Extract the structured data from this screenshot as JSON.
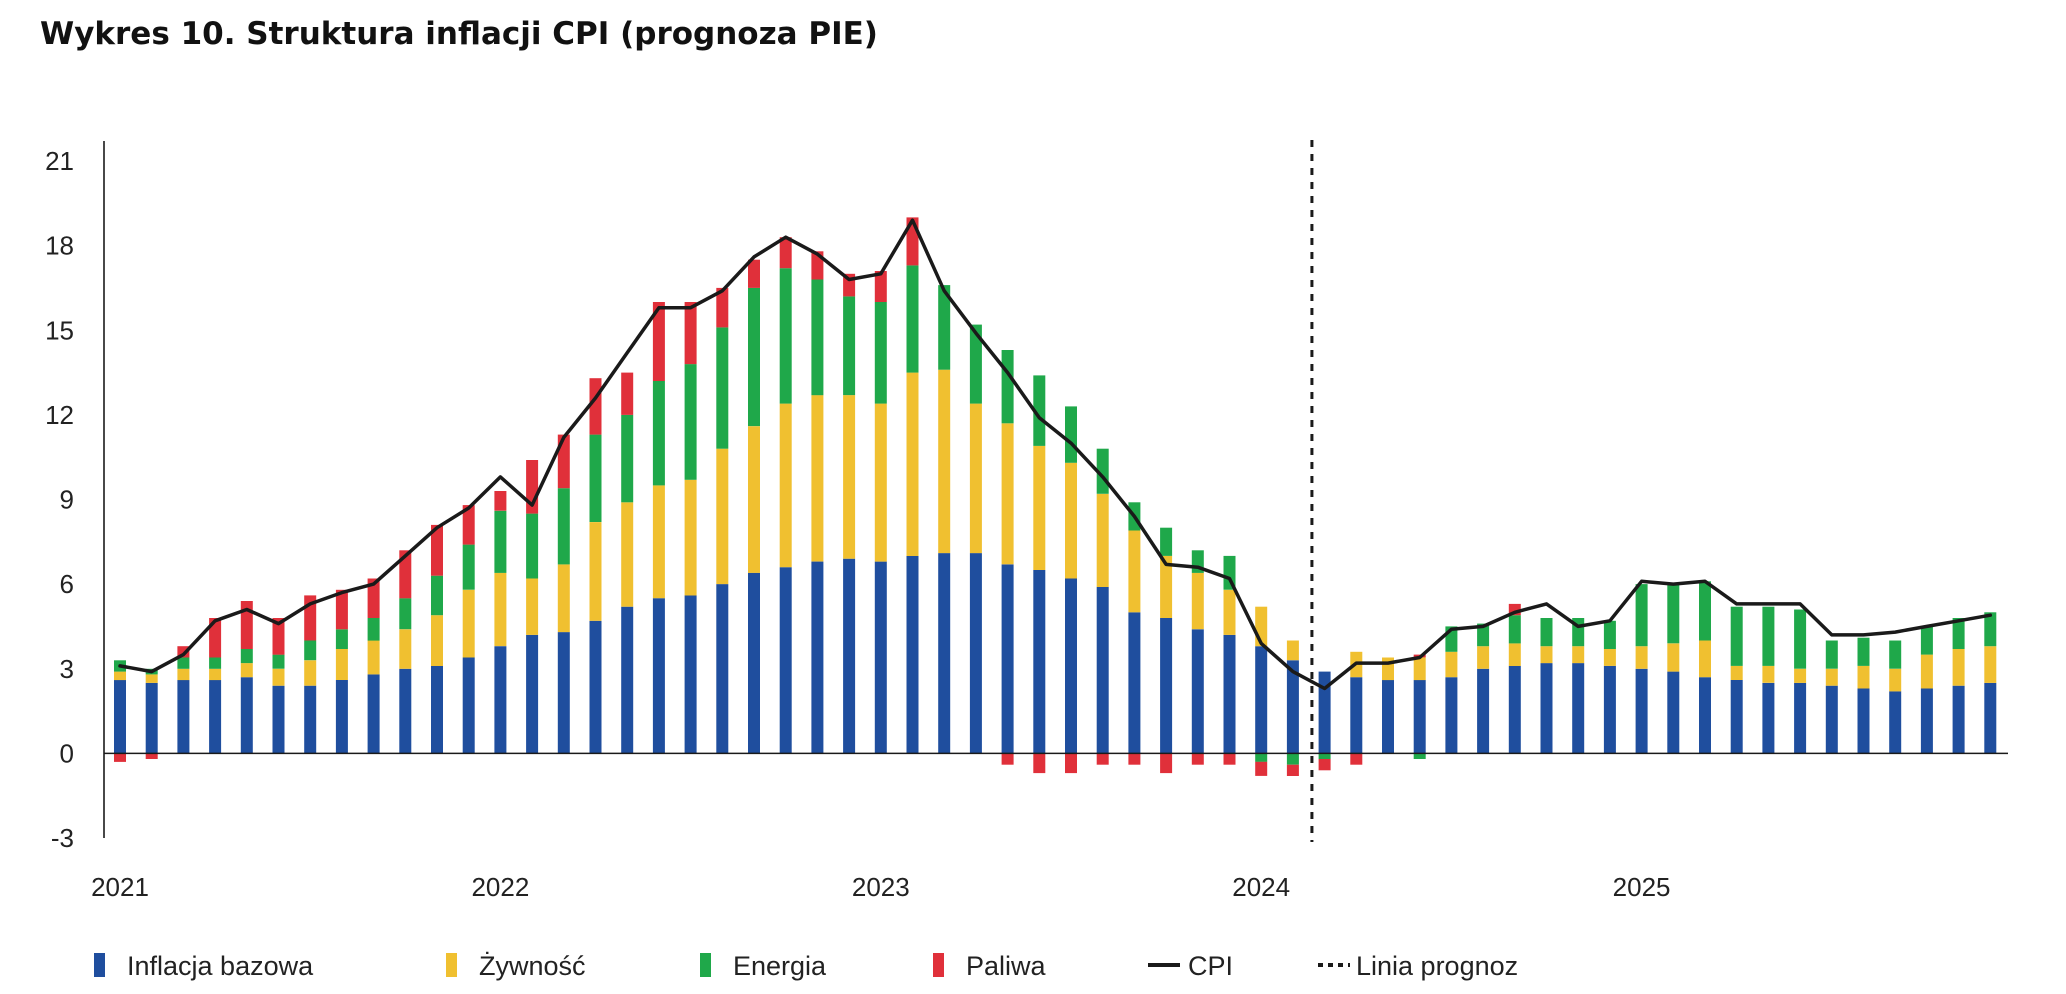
{
  "title": "Wykres 10. Struktura inflacji CPI (prognoza PIE)",
  "colors": {
    "core": "#1F4E9E",
    "food": "#F0C030",
    "energy": "#1FA84A",
    "fuel": "#E0303A",
    "cpi": "#1a1a1a",
    "axis": "#1a1a1a"
  },
  "chart_data": {
    "type": "bar",
    "stacked": true,
    "title": "Wykres 10. Struktura inflacji CPI (prognoza PIE)",
    "xlabel": "",
    "ylabel": "",
    "ylim": [
      -3,
      21
    ],
    "yticks": [
      21,
      18,
      15,
      12,
      9,
      6,
      3,
      0,
      -3
    ],
    "xticks": [
      {
        "label": "2021",
        "index": 0
      },
      {
        "label": "2022",
        "index": 12
      },
      {
        "label": "2023",
        "index": 24
      },
      {
        "label": "2024",
        "index": 36
      },
      {
        "label": "2025",
        "index": 48
      }
    ],
    "forecast_start_index": 37.6,
    "months": [
      "2021-01",
      "2021-02",
      "2021-03",
      "2021-04",
      "2021-05",
      "2021-06",
      "2021-07",
      "2021-08",
      "2021-09",
      "2021-10",
      "2021-11",
      "2021-12",
      "2022-01",
      "2022-02",
      "2022-03",
      "2022-04",
      "2022-05",
      "2022-06",
      "2022-07",
      "2022-08",
      "2022-09",
      "2022-10",
      "2022-11",
      "2022-12",
      "2023-01",
      "2023-02",
      "2023-03",
      "2023-04",
      "2023-05",
      "2023-06",
      "2023-07",
      "2023-08",
      "2023-09",
      "2023-10",
      "2023-11",
      "2023-12",
      "2024-01",
      "2024-02",
      "2024-03",
      "2024-04",
      "2024-05",
      "2024-06",
      "2024-07",
      "2024-08",
      "2024-09",
      "2024-10",
      "2024-11",
      "2024-12",
      "2025-01",
      "2025-02",
      "2025-03",
      "2025-04",
      "2025-05",
      "2025-06",
      "2025-07",
      "2025-08",
      "2025-09",
      "2025-10",
      "2025-11",
      "2025-12"
    ],
    "series": [
      {
        "name": "Inflacja bazowa",
        "type": "bar",
        "color": "#1F4E9E",
        "values": [
          2.6,
          2.5,
          2.6,
          2.6,
          2.7,
          2.4,
          2.4,
          2.6,
          2.8,
          3.0,
          3.1,
          3.4,
          3.8,
          4.2,
          4.3,
          4.7,
          5.2,
          5.5,
          5.6,
          6.0,
          6.4,
          6.6,
          6.8,
          6.9,
          6.8,
          7.0,
          7.1,
          7.1,
          6.7,
          6.5,
          6.2,
          5.9,
          5.0,
          4.8,
          4.4,
          4.2,
          3.8,
          3.3,
          2.9,
          2.7,
          2.6,
          2.6,
          2.7,
          3.0,
          3.1,
          3.2,
          3.2,
          3.1,
          3.0,
          2.9,
          2.7,
          2.6,
          2.5,
          2.5,
          2.4,
          2.3,
          2.2,
          2.3,
          2.4,
          2.5
        ]
      },
      {
        "name": "Żywność",
        "type": "bar",
        "color": "#F0C030",
        "values": [
          0.3,
          0.3,
          0.4,
          0.4,
          0.5,
          0.6,
          0.9,
          1.1,
          1.2,
          1.4,
          1.8,
          2.4,
          2.6,
          2.0,
          2.4,
          3.5,
          3.7,
          4.0,
          4.1,
          4.8,
          5.2,
          5.8,
          5.9,
          5.8,
          5.6,
          6.5,
          6.5,
          5.3,
          5.0,
          4.4,
          4.1,
          3.3,
          2.9,
          2.2,
          2.0,
          1.6,
          1.4,
          0.7,
          0.0,
          0.9,
          0.8,
          0.8,
          0.9,
          0.8,
          0.8,
          0.6,
          0.6,
          0.6,
          0.8,
          1.0,
          1.3,
          0.5,
          0.6,
          0.5,
          0.6,
          0.8,
          0.8,
          1.2,
          1.3,
          1.3
        ]
      },
      {
        "name": "Energia",
        "type": "bar",
        "color": "#1FA84A",
        "values": [
          0.4,
          0.2,
          0.4,
          0.4,
          0.5,
          0.5,
          0.7,
          0.7,
          0.8,
          1.1,
          1.4,
          1.6,
          2.2,
          2.3,
          2.7,
          3.1,
          3.1,
          3.7,
          4.1,
          4.3,
          4.9,
          4.8,
          4.1,
          3.5,
          3.6,
          3.8,
          3.0,
          2.8,
          2.6,
          2.5,
          2.0,
          1.6,
          1.0,
          1.0,
          0.8,
          1.2,
          -0.3,
          -0.4,
          -0.2,
          0.0,
          0.0,
          -0.2,
          0.9,
          0.8,
          1.0,
          1.0,
          1.0,
          1.0,
          2.2,
          2.1,
          2.1,
          2.1,
          2.1,
          2.1,
          1.0,
          1.0,
          1.0,
          1.0,
          1.1,
          1.2
        ]
      },
      {
        "name": "Paliwa",
        "type": "bar",
        "color": "#E0303A",
        "values": [
          -0.3,
          -0.2,
          0.4,
          1.4,
          1.7,
          1.3,
          1.6,
          1.4,
          1.4,
          1.7,
          1.8,
          1.4,
          0.7,
          1.9,
          1.9,
          2.0,
          1.5,
          2.8,
          2.2,
          1.4,
          1.0,
          1.1,
          1.0,
          0.8,
          1.1,
          1.7,
          0.0,
          0.0,
          -0.4,
          -0.7,
          -0.7,
          -0.4,
          -0.4,
          -0.7,
          -0.4,
          -0.4,
          -0.5,
          -0.4,
          -0.4,
          -0.4,
          0.0,
          0.1,
          0.0,
          0.0,
          0.4,
          0.0,
          0.0,
          0.0,
          0.0,
          0.0,
          0.0,
          0.0,
          0.0,
          0.0,
          0.0,
          0.0,
          0.0,
          0.0,
          0.0,
          0.0
        ]
      },
      {
        "name": "CPI",
        "type": "line",
        "color": "#1a1a1a",
        "values": [
          3.1,
          2.9,
          3.5,
          4.7,
          5.1,
          4.6,
          5.3,
          5.7,
          6.0,
          7.0,
          8.0,
          8.7,
          9.8,
          8.8,
          11.2,
          12.6,
          14.2,
          15.8,
          15.8,
          16.4,
          17.6,
          18.3,
          17.7,
          16.8,
          17.0,
          18.9,
          16.4,
          14.9,
          13.5,
          11.9,
          11.0,
          9.8,
          8.4,
          6.7,
          6.6,
          6.2,
          3.9,
          2.9,
          2.3,
          3.2,
          3.2,
          3.4,
          4.4,
          4.5,
          5.0,
          5.3,
          4.5,
          4.7,
          6.1,
          6.0,
          6.1,
          5.3,
          5.3,
          5.3,
          4.2,
          4.2,
          4.3,
          4.5,
          4.7,
          4.9
        ]
      }
    ],
    "legend": [
      {
        "label": "Inflacja bazowa",
        "kind": "square",
        "color": "#1F4E9E"
      },
      {
        "label": "Żywność",
        "kind": "square",
        "color": "#F0C030"
      },
      {
        "label": "Energia",
        "kind": "square",
        "color": "#1FA84A"
      },
      {
        "label": "Paliwa",
        "kind": "square",
        "color": "#E0303A"
      },
      {
        "label": "CPI",
        "kind": "line",
        "color": "#1a1a1a"
      },
      {
        "label": "Linia prognoz",
        "kind": "dashed",
        "color": "#1a1a1a"
      }
    ],
    "legend_position": "bottom"
  }
}
